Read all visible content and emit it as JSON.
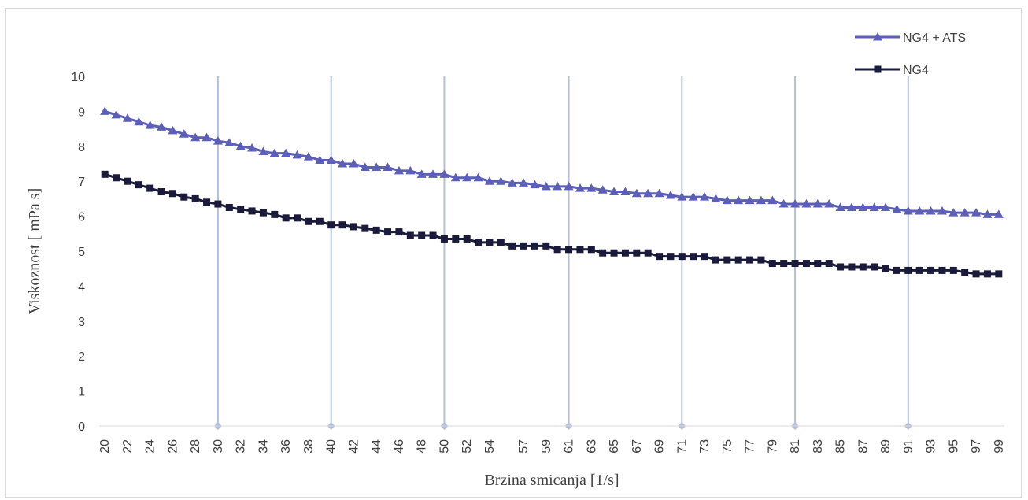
{
  "chart_data": {
    "type": "line",
    "xlabel": "Brzina smicanja [1/s]",
    "ylabel": "Viskoznost  [ mPa s]",
    "ylim": [
      0,
      10
    ],
    "yticks": [
      0,
      1,
      2,
      3,
      4,
      5,
      6,
      7,
      8,
      9,
      10
    ],
    "x_tick_labels": [
      "20",
      "22",
      "24",
      "26",
      "28",
      "30",
      "32",
      "34",
      "36",
      "38",
      "40",
      "42",
      "44",
      "46",
      "48",
      "50",
      "52",
      "54",
      "57",
      "59",
      "61",
      "63",
      "65",
      "67",
      "69",
      "71",
      "73",
      "75",
      "77",
      "79",
      "81",
      "83",
      "85",
      "87",
      "89",
      "91",
      "93",
      "95",
      "97",
      "99"
    ],
    "legend_position": "top-right",
    "colors": {
      "NG4 + ATS": "#5b5fb8",
      "NG4": "#1a1a3a",
      "droplines": "#b4bfdc"
    },
    "droplines_at": [
      30,
      40,
      50,
      61,
      71,
      81,
      91
    ],
    "series": [
      {
        "name": "NG4 + ATS",
        "marker": "triangle",
        "values": [
          9.0,
          8.9,
          8.8,
          8.7,
          8.6,
          8.55,
          8.45,
          8.35,
          8.25,
          8.25,
          8.15,
          8.1,
          8.0,
          7.95,
          7.85,
          7.8,
          7.8,
          7.75,
          7.7,
          7.6,
          7.6,
          7.5,
          7.5,
          7.4,
          7.4,
          7.4,
          7.3,
          7.3,
          7.2,
          7.2,
          7.2,
          7.1,
          7.1,
          7.1,
          7.0,
          7.0,
          6.95,
          6.95,
          6.9,
          6.85,
          6.85,
          6.85,
          6.8,
          6.8,
          6.75,
          6.7,
          6.7,
          6.65,
          6.65,
          6.65,
          6.6,
          6.55,
          6.55,
          6.55,
          6.5,
          6.45,
          6.45,
          6.45,
          6.45,
          6.45,
          6.35,
          6.35,
          6.35,
          6.35,
          6.35,
          6.25,
          6.25,
          6.25,
          6.25,
          6.25,
          6.2,
          6.15,
          6.15,
          6.15,
          6.15,
          6.1,
          6.1,
          6.1,
          6.05,
          6.05
        ]
      },
      {
        "name": "NG4",
        "marker": "square",
        "values": [
          7.2,
          7.1,
          7.0,
          6.9,
          6.8,
          6.7,
          6.65,
          6.55,
          6.5,
          6.4,
          6.35,
          6.25,
          6.2,
          6.15,
          6.1,
          6.05,
          5.95,
          5.95,
          5.85,
          5.85,
          5.75,
          5.75,
          5.7,
          5.65,
          5.6,
          5.55,
          5.55,
          5.45,
          5.45,
          5.45,
          5.35,
          5.35,
          5.35,
          5.25,
          5.25,
          5.25,
          5.15,
          5.15,
          5.15,
          5.15,
          5.05,
          5.05,
          5.05,
          5.05,
          4.95,
          4.95,
          4.95,
          4.95,
          4.95,
          4.85,
          4.85,
          4.85,
          4.85,
          4.85,
          4.75,
          4.75,
          4.75,
          4.75,
          4.75,
          4.65,
          4.65,
          4.65,
          4.65,
          4.65,
          4.65,
          4.55,
          4.55,
          4.55,
          4.55,
          4.5,
          4.45,
          4.45,
          4.45,
          4.45,
          4.45,
          4.45,
          4.4,
          4.35,
          4.35,
          4.35
        ]
      }
    ]
  }
}
